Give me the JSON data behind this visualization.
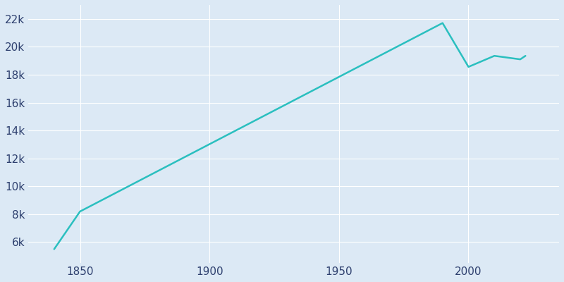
{
  "years": [
    1840,
    1850,
    1990,
    2000,
    2010,
    2020,
    2022
  ],
  "population": [
    5500,
    8200,
    21700,
    18560,
    19350,
    19100,
    19350
  ],
  "line_color": "#2abfbf",
  "bg_color": "#dce9f5",
  "grid_color": "#ffffff",
  "tick_color": "#2d3f6e",
  "line_width": 1.8,
  "figsize": [
    8.0,
    4.0
  ],
  "dpi": 100,
  "xlim": [
    1830,
    2035
  ],
  "ylim": [
    4500,
    23000
  ],
  "yticks": [
    6000,
    8000,
    10000,
    12000,
    14000,
    16000,
    18000,
    20000,
    22000
  ],
  "xticks": [
    1850,
    1900,
    1950,
    2000
  ]
}
